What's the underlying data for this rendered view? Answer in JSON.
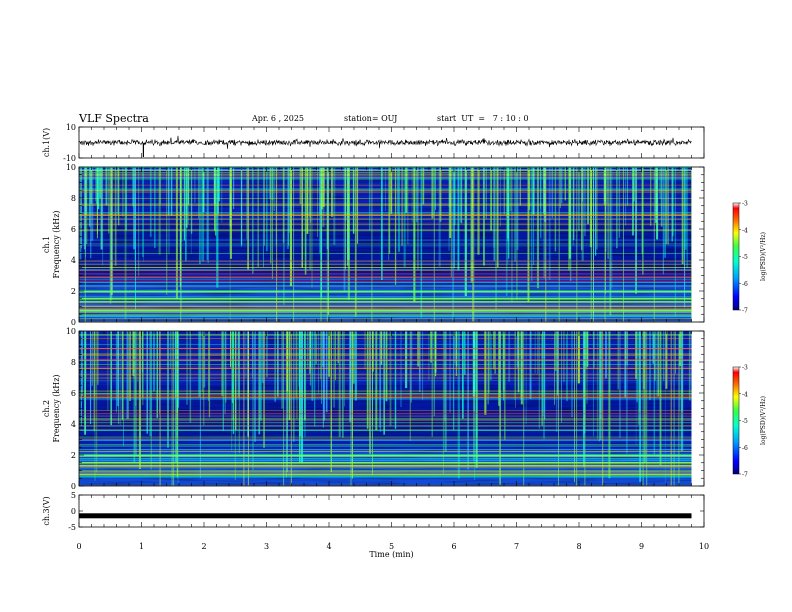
{
  "header": {
    "title": "VLF Spectra",
    "date": "Apr. 6 , 2025",
    "station": "station= OUJ",
    "start": "start  UT  =   7 : 10 : 0"
  },
  "chart_data": [
    {
      "type": "line",
      "panel": "ch1-waveform",
      "ylabel": "ch.1(V)",
      "xlim": [
        0,
        10
      ],
      "ylim": [
        -10,
        10
      ],
      "yticks": [
        "10",
        "-10"
      ],
      "description_level": 0,
      "trace_amplitude": 1.5,
      "trace_end_min": 9.8
    },
    {
      "type": "heatmap",
      "panel": "ch1-spectrogram",
      "ylabel_top": "ch.1",
      "ylabel": "Frequency (kHz)",
      "xlim": [
        0,
        10
      ],
      "ylim": [
        0,
        10
      ],
      "yticks": [
        "0",
        "2",
        "4",
        "6",
        "8",
        "10"
      ],
      "data_end_min": 9.8,
      "colorbar": {
        "label": "log(PSD)(V²/Hz)",
        "range": [
          -7,
          -3
        ],
        "ticks": [
          "-3",
          "-4",
          "-5",
          "-6",
          "-7"
        ]
      }
    },
    {
      "type": "heatmap",
      "panel": "ch2-spectrogram",
      "ylabel_top": "ch.2",
      "ylabel": "Frequency (kHz)",
      "xlim": [
        0,
        10
      ],
      "ylim": [
        0,
        10
      ],
      "yticks": [
        "0",
        "2",
        "4",
        "6",
        "8",
        "10"
      ],
      "data_end_min": 9.8,
      "colorbar": {
        "label": "log(PSD)(V²/Hz)",
        "range": [
          -7,
          -3
        ],
        "ticks": [
          "-3",
          "-4",
          "-5",
          "-6",
          "-7"
        ]
      }
    },
    {
      "type": "line",
      "panel": "ch3-waveform",
      "ylabel": "ch.3(V)",
      "xlim": [
        0,
        10
      ],
      "ylim": [
        -5,
        5
      ],
      "yticks": [
        "5",
        "0",
        "-5"
      ],
      "level": -1.5,
      "trace_end_min": 9.8
    }
  ],
  "xaxis": {
    "label": "Time (min)",
    "ticks": [
      "0",
      "1",
      "2",
      "3",
      "4",
      "5",
      "6",
      "7",
      "8",
      "9",
      "10"
    ]
  }
}
